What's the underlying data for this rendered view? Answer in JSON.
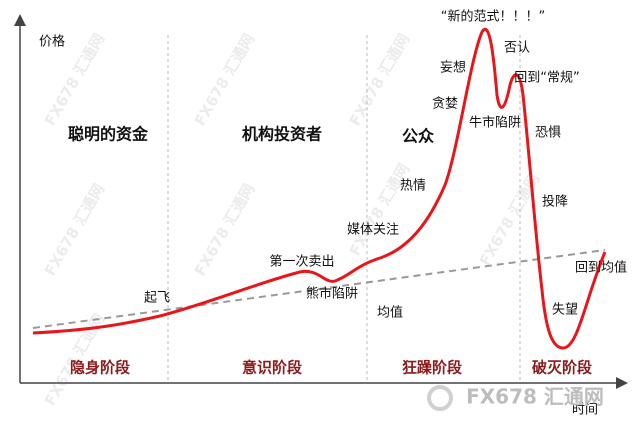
{
  "axes": {
    "y_label": "价格",
    "x_label": "时间"
  },
  "participants": [
    "聪明的资金",
    "机构投资者",
    "公众"
  ],
  "phases": [
    "隐身阶段",
    "意识阶段",
    "狂躁阶段",
    "破灭阶段"
  ],
  "annotations": [
    "起飞",
    "第一次卖出",
    "熊市陷阱",
    "媒体关注",
    "均值",
    "热情",
    "贪婪",
    "妄想",
    "“新的范式！！！”",
    "否认",
    "回到“常规”",
    "牛市陷阱",
    "恐惧",
    "投降",
    "失望",
    "回到均值"
  ],
  "watermark": "FX678 汇通网"
}
